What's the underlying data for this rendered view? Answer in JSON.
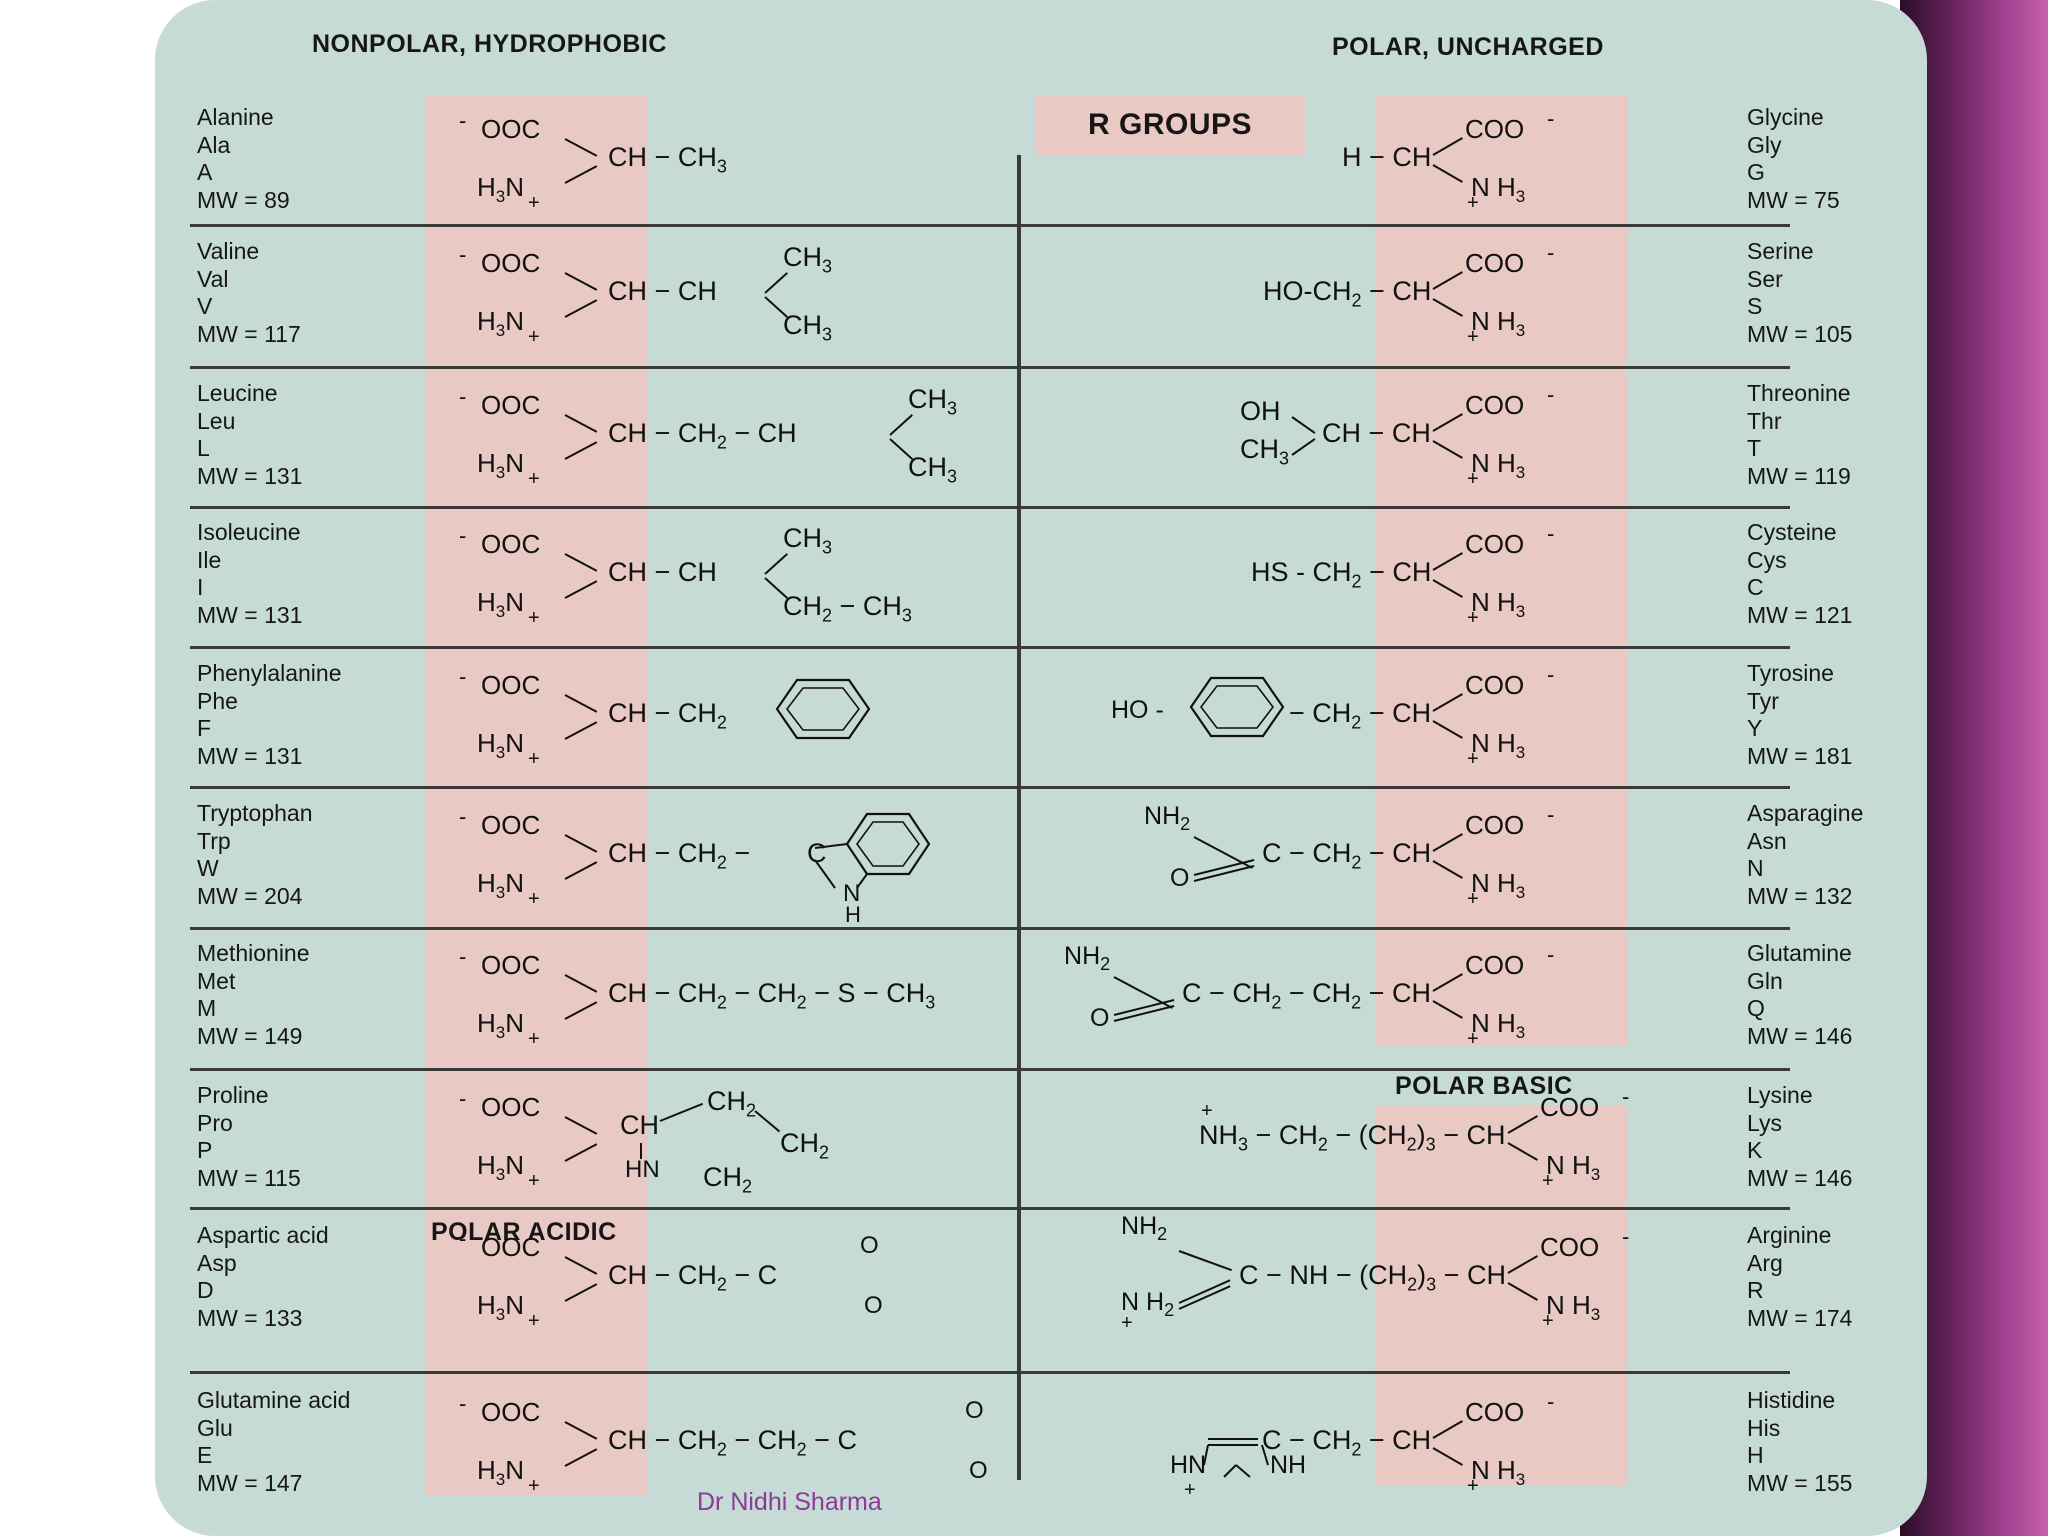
{
  "headers": {
    "nonpolar": "NONPOLAR, HYDROPHOBIC",
    "polar_uncharged": "POLAR, UNCHARGED",
    "r_groups": "R GROUPS",
    "polar_basic": "POLAR BASIC",
    "polar_acidic": "POLAR ACIDIC"
  },
  "left_column": [
    {
      "name": "Alanine",
      "abbr3": "Ala",
      "abbr1": "A",
      "mw": "MW = 89",
      "r_formula": "CH − CH₃"
    },
    {
      "name": "Valine",
      "abbr3": "Val",
      "abbr1": "V",
      "mw": "MW = 117",
      "r_formula": "CH − CH",
      "r_branch_top": "CH₃",
      "r_branch_bottom": "CH₃"
    },
    {
      "name": "Leucine",
      "abbr3": "Leu",
      "abbr1": "L",
      "mw": "MW = 131",
      "r_formula": "CH − CH₂ − CH",
      "r_branch_top": "CH₃",
      "r_branch_bottom": "CH₃"
    },
    {
      "name": "Isoleucine",
      "abbr3": "Ile",
      "abbr1": "I",
      "mw": "MW = 131",
      "r_formula": "CH − CH",
      "r_branch_top": "CH₃",
      "r_branch_bottom": "CH₂ − CH₃"
    },
    {
      "name": "Phenylalanine",
      "abbr3": "Phe",
      "abbr1": "F",
      "mw": "MW = 131",
      "r_formula": "CH − CH₂"
    },
    {
      "name": "Tryptophan",
      "abbr3": "Trp",
      "abbr1": "W",
      "mw": "MW = 204",
      "r_formula": "CH − CH₂ −",
      "ring_label_c": "C",
      "ring_label_n": "N",
      "ring_label_h": "H"
    },
    {
      "name": "Methionine",
      "abbr3": "Met",
      "abbr1": "M",
      "mw": "MW = 149",
      "r_formula": "CH − CH₂ − CH₂ − S − CH₃"
    },
    {
      "name": "Proline",
      "abbr3": "Pro",
      "abbr1": "P",
      "mw": "MW = 115",
      "r_ch": "CH",
      "r_ch2_top": "CH₂",
      "r_ch2_right": "CH₂",
      "r_hn": "HN",
      "r_ch2_bottom": "CH₂"
    },
    {
      "name": "Aspartic acid",
      "abbr3": "Asp",
      "abbr1": "D",
      "mw": "MW = 133",
      "r_formula": "CH − CH₂ − C",
      "r_o_top": "O",
      "r_o_bottom": "O"
    },
    {
      "name": "Glutamine acid",
      "abbr3": "Glu",
      "abbr1": "E",
      "mw": "MW = 147",
      "r_formula": "CH − CH₂ − CH₂ − C",
      "r_o_top": "O",
      "r_o_bottom": "O"
    }
  ],
  "right_column": [
    {
      "name": "Glycine",
      "abbr3": "Gly",
      "abbr1": "G",
      "mw": "MW = 75",
      "r_formula": "H − CH"
    },
    {
      "name": "Serine",
      "abbr3": "Ser",
      "abbr1": "S",
      "mw": "MW = 105",
      "r_formula": "HO-CH₂ − CH"
    },
    {
      "name": "Threonine",
      "abbr3": "Thr",
      "abbr1": "T",
      "mw": "MW = 119",
      "r_formula": "CH − CH",
      "r_oh": "OH",
      "r_ch3": "CH₃"
    },
    {
      "name": "Cysteine",
      "abbr3": "Cys",
      "abbr1": "C",
      "mw": "MW = 121",
      "r_formula": "HS - CH₂ − CH"
    },
    {
      "name": "Tyrosine",
      "abbr3": "Tyr",
      "abbr1": "Y",
      "mw": "MW = 181",
      "r_prefix": "HO -",
      "r_formula": "− CH₂ − CH"
    },
    {
      "name": "Asparagine",
      "abbr3": "Asn",
      "abbr1": "N",
      "mw": "MW = 132",
      "r_formula": "C − CH₂ − CH",
      "r_nh2": "NH₂",
      "r_o": "O"
    },
    {
      "name": "Glutamine",
      "abbr3": "Gln",
      "abbr1": "Q",
      "mw": "MW = 146",
      "r_formula": "C − CH₂ − CH₂ − CH",
      "r_nh2": "NH₂",
      "r_o": "O"
    },
    {
      "name": "Lysine",
      "abbr3": "Lys",
      "abbr1": "K",
      "mw": "MW = 146",
      "r_formula": "NH₃ − CH₂ − (CH₂)₃ − CH",
      "r_plus": "+"
    },
    {
      "name": "Arginine",
      "abbr3": "Arg",
      "abbr1": "R",
      "mw": "MW = 174",
      "r_formula": "C − NH − (CH₂)₃ − CH",
      "r_nh2": "NH₂",
      "r_nh2_bottom": "N H₂"
    },
    {
      "name": "Histidine",
      "abbr3": "His",
      "abbr1": "H",
      "mw": "MW = 155",
      "r_formula": "C − CH₂ − CH",
      "r_hn": "HN",
      "r_nh": "NH"
    }
  ],
  "amino_group": {
    "cooh_left": "OOC",
    "nh3_left": "H₃N",
    "cooh_right": "COO",
    "nh3_right": "N H₃",
    "minus": "-",
    "plus": "+"
  },
  "footer": "Dr Nidhi Sharma",
  "colors": {
    "card_bg": "#c7dbd6",
    "band_pink": "#e8c9c4",
    "footer_text": "#8b3a96",
    "side_purple": "#a1408f"
  }
}
